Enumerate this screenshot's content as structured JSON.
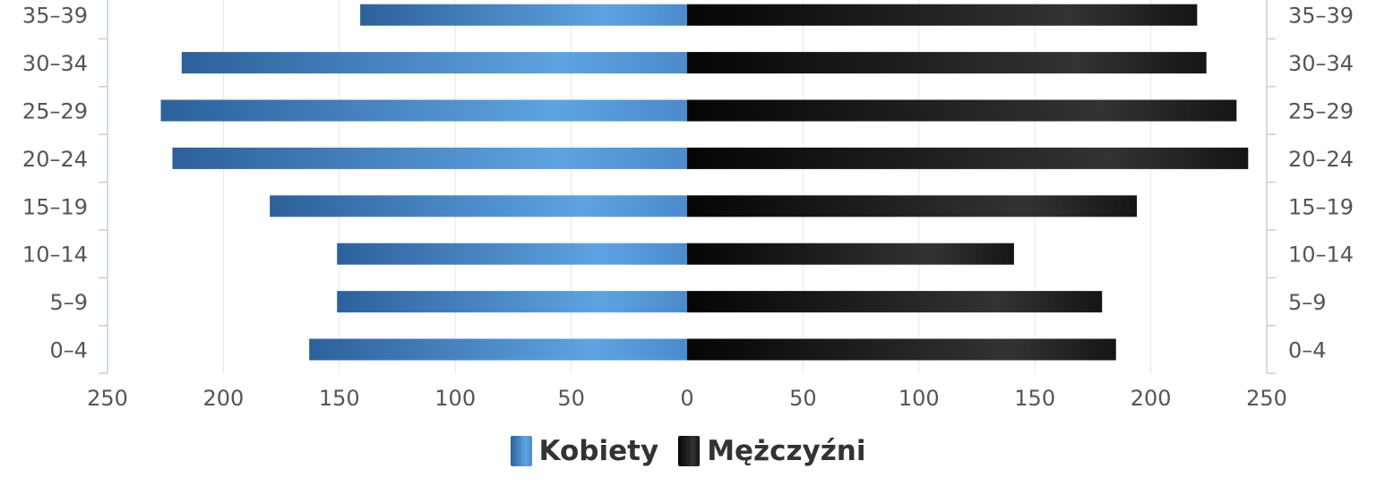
{
  "chart_data": {
    "type": "bar",
    "orientation": "horizontal",
    "layout": "population-pyramid",
    "categories": [
      "35-39",
      "30-34",
      "25-29",
      "20-24",
      "15-19",
      "10-14",
      "5-9",
      "0-4"
    ],
    "series": [
      {
        "name": "Kobiety",
        "color": "#3d7ec0",
        "values": [
          141,
          218,
          227,
          222,
          180,
          151,
          151,
          163
        ]
      },
      {
        "name": "Mężczyźni",
        "color": "#1c1c1c",
        "values": [
          220,
          224,
          237,
          242,
          194,
          141,
          179,
          185
        ]
      }
    ],
    "x_ticks": [
      "250",
      "200",
      "150",
      "100",
      "50",
      "0",
      "50",
      "100",
      "150",
      "200",
      "250"
    ],
    "xlim": [
      -250,
      250
    ],
    "grid": true,
    "legend_position": "bottom-center"
  },
  "legend": {
    "female_label": "Kobiety",
    "male_label": "Mężczyźni"
  }
}
